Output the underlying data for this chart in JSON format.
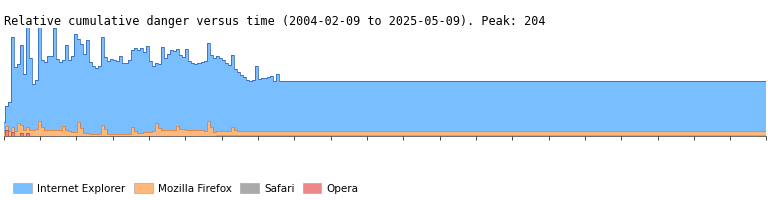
{
  "title": "Relative cumulative danger versus time (2004-02-09 to 2025-05-09). Peak: 204",
  "title_fontsize": 8.5,
  "bg_color": "#ffffff",
  "plot_bg_color": "#ffffff",
  "ie_color": "#79bfff",
  "ie_edge_color": "#2255aa",
  "ff_color": "#ffb87a",
  "ff_edge_color": "#cc6622",
  "safari_color": "#aaaaaa",
  "opera_color": "#ee8888",
  "opera_edge_color": "#aa2222",
  "legend_labels": [
    "Internet Explorer",
    "Mozilla Firefox",
    "Safari",
    "Opera"
  ],
  "ylim": [
    0,
    215
  ],
  "peak": 204
}
